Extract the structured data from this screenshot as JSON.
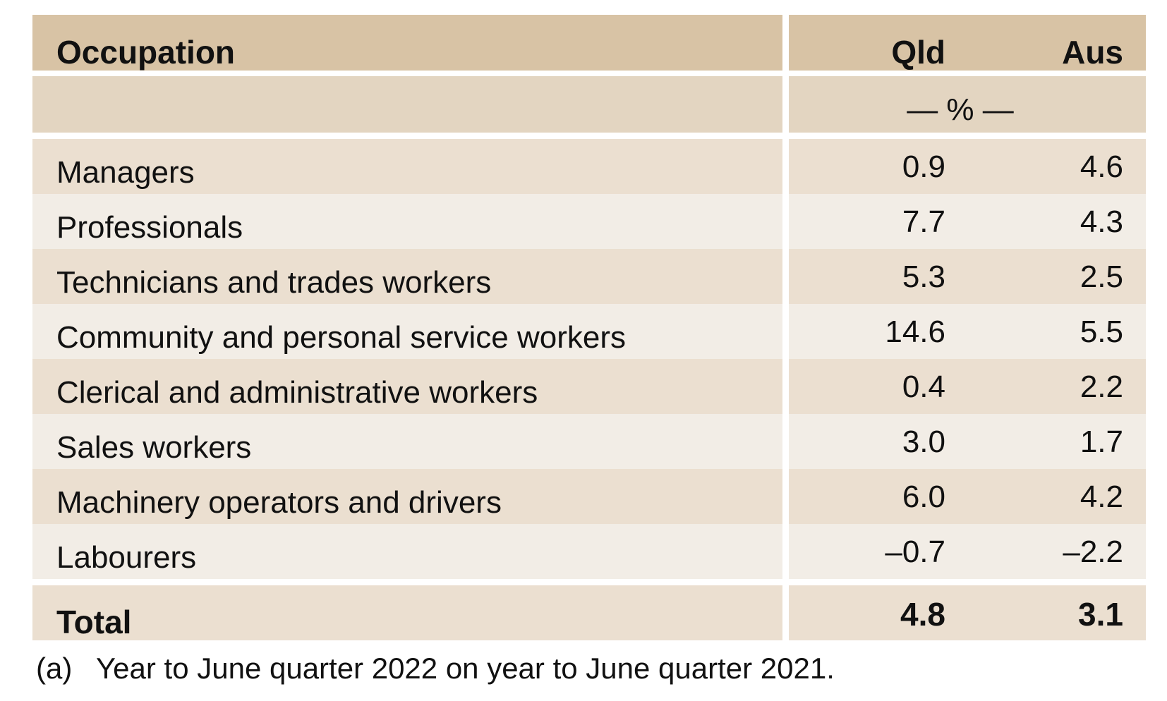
{
  "table": {
    "header": {
      "occupation": "Occupation",
      "qld": "Qld",
      "aus": "Aus"
    },
    "unit": "— % —",
    "rows": [
      {
        "occupation": "Managers",
        "qld": "0.9",
        "aus": "4.6"
      },
      {
        "occupation": "Professionals",
        "qld": "7.7",
        "aus": "4.3"
      },
      {
        "occupation": "Technicians and trades workers",
        "qld": "5.3",
        "aus": "2.5"
      },
      {
        "occupation": "Community and personal service workers",
        "qld": "14.6",
        "aus": "5.5"
      },
      {
        "occupation": "Clerical and administrative workers",
        "qld": "0.4",
        "aus": "2.2"
      },
      {
        "occupation": "Sales workers",
        "qld": "3.0",
        "aus": "1.7"
      },
      {
        "occupation": "Machinery operators and drivers",
        "qld": "6.0",
        "aus": "4.2"
      },
      {
        "occupation": "Labourers",
        "qld": "–0.7",
        "aus": "–2.2"
      }
    ],
    "total": {
      "occupation": "Total",
      "qld": "4.8",
      "aus": "3.1"
    }
  },
  "footnote": {
    "mark": "(a)",
    "text": "Year to June quarter 2022 on year to June quarter 2021."
  },
  "colors": {
    "header_bg": "#d8c3a5",
    "unit_bg": "#e3d5c1",
    "row_dark_bg": "#ebdfd0",
    "row_light_bg": "#f2ede6"
  }
}
